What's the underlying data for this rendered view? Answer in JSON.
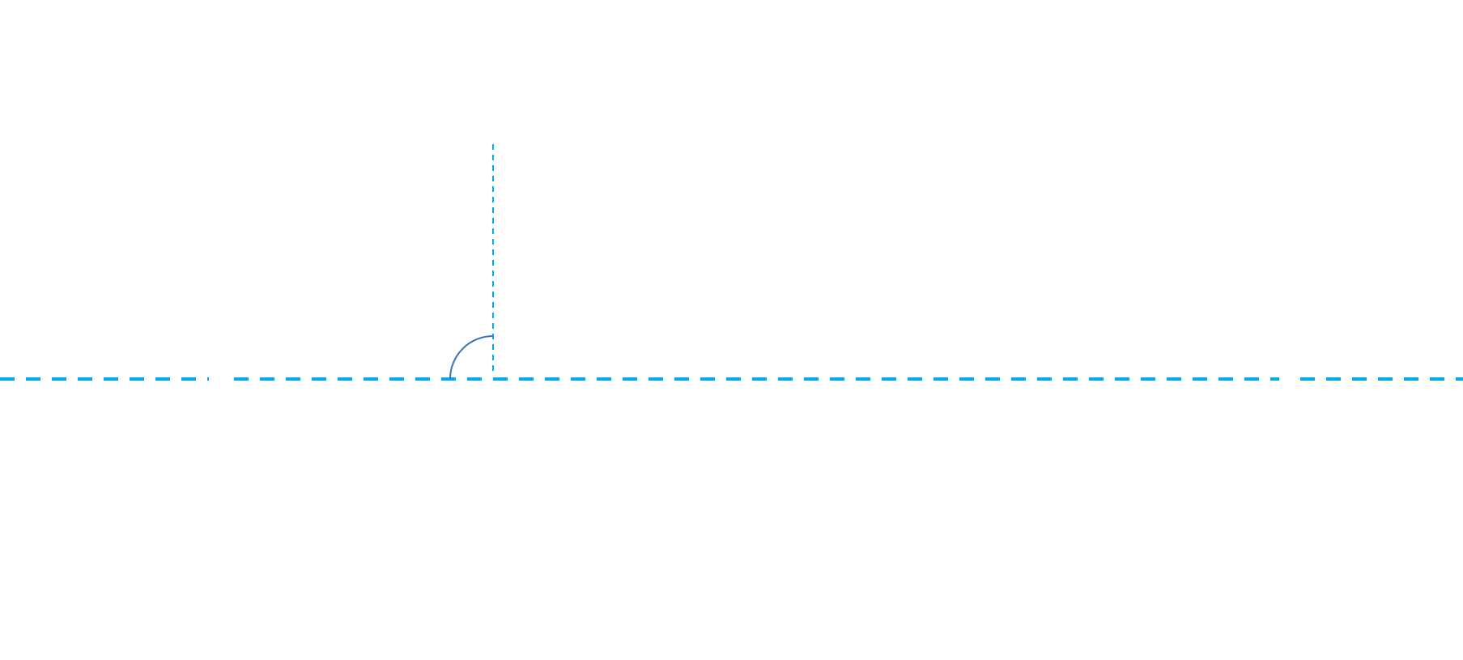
{
  "diagram": {
    "elements": [
      {
        "name": "horizontal-reference-line",
        "style": "dashed",
        "orientation": "horizontal"
      },
      {
        "name": "vertical-reference-line",
        "style": "dashed",
        "orientation": "vertical"
      },
      {
        "name": "right-angle-arc",
        "shape": "quarter-circle arc",
        "angle_degrees": 90
      }
    ],
    "colors": {
      "line": "#00AAEE",
      "arc": "#3E6EC2",
      "background": "#FFFFFF"
    },
    "labels": []
  }
}
